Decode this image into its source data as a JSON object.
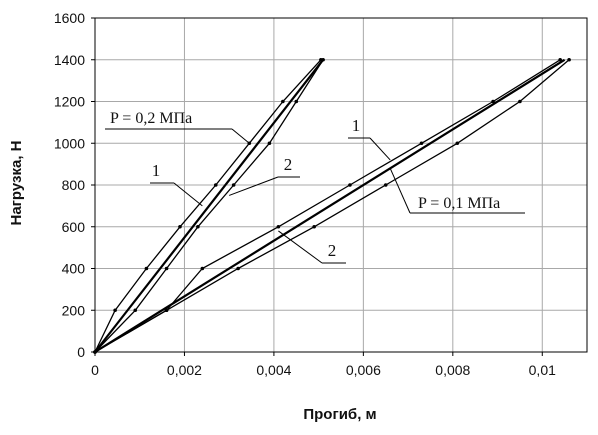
{
  "chart_data": {
    "type": "line",
    "title": "",
    "xlabel": "Прогиб, м",
    "ylabel": "Нагрузка, Н",
    "xlim": [
      0,
      0.011
    ],
    "ylim": [
      0,
      1600
    ],
    "x_ticks": [
      "0",
      "0,002",
      "0,004",
      "0,006",
      "0,008",
      "0,01"
    ],
    "x_tick_values": [
      0,
      0.002,
      0.004,
      0.006,
      0.008,
      0.01
    ],
    "y_ticks": [
      "0",
      "200",
      "400",
      "600",
      "800",
      "1000",
      "1200",
      "1400",
      "1600"
    ],
    "y_tick_values": [
      0,
      200,
      400,
      600,
      800,
      1000,
      1200,
      1400,
      1600
    ],
    "grid": true,
    "legend": "none",
    "series": [
      {
        "label": "1",
        "group": "P = 0,2 МПа",
        "points": [
          [
            0,
            0
          ],
          [
            0.00045,
            200
          ],
          [
            0.00115,
            400
          ],
          [
            0.0019,
            600
          ],
          [
            0.0027,
            800
          ],
          [
            0.00345,
            1000
          ],
          [
            0.0042,
            1200
          ],
          [
            0.00505,
            1400
          ]
        ]
      },
      {
        "label": "2",
        "group": "P = 0,2 МПа",
        "points": [
          [
            0,
            0
          ],
          [
            0.0009,
            200
          ],
          [
            0.0016,
            400
          ],
          [
            0.0023,
            600
          ],
          [
            0.0031,
            800
          ],
          [
            0.0039,
            1000
          ],
          [
            0.0045,
            1200
          ],
          [
            0.0051,
            1400
          ]
        ]
      },
      {
        "label": "1",
        "group": "P = 0,1 МПа",
        "points": [
          [
            0,
            0
          ],
          [
            0.0016,
            200
          ],
          [
            0.0024,
            400
          ],
          [
            0.0041,
            600
          ],
          [
            0.0057,
            800
          ],
          [
            0.0073,
            1000
          ],
          [
            0.0089,
            1200
          ],
          [
            0.0104,
            1400
          ]
        ]
      },
      {
        "label": "2",
        "group": "P = 0,1 МПа",
        "points": [
          [
            0,
            0
          ],
          [
            0.0016,
            200
          ],
          [
            0.0032,
            400
          ],
          [
            0.0049,
            600
          ],
          [
            0.0065,
            800
          ],
          [
            0.0081,
            1000
          ],
          [
            0.0095,
            1200
          ],
          [
            0.0106,
            1400
          ]
        ]
      }
    ],
    "mean_lines": [
      {
        "group": "P = 0,2 МПа",
        "points": [
          [
            0,
            0
          ],
          [
            0.0051,
            1400
          ]
        ]
      },
      {
        "group": "P = 0,1 МПа",
        "points": [
          [
            0,
            0
          ],
          [
            0.0105,
            1400
          ]
        ]
      }
    ],
    "annotations": [
      {
        "text": "P = 0,2 МПа",
        "target": [
          0.00345,
          1000
        ]
      },
      {
        "text": "1",
        "target": [
          0.0024,
          700
        ]
      },
      {
        "text": "2",
        "target": [
          0.003,
          750
        ]
      },
      {
        "text": "1",
        "target": [
          0.0066,
          920
        ]
      },
      {
        "text": "P = 0,1 МПа",
        "target": [
          0.0066,
          880
        ]
      },
      {
        "text": "2",
        "target": [
          0.0041,
          580
        ]
      }
    ]
  }
}
